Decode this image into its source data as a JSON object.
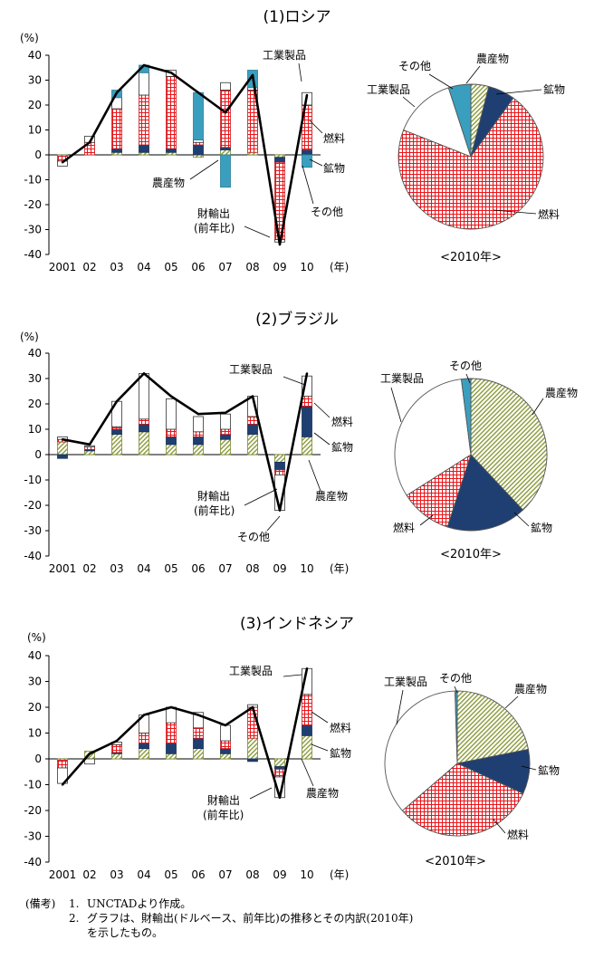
{
  "units": {
    "percent": "(%)",
    "year": "(年)"
  },
  "legend_names": {
    "manufactured": "工業製品",
    "fuel": "燃料",
    "mineral": "鉱物",
    "other": "その他",
    "agri": "農産物",
    "total_line": "財輸出",
    "total_line_sub": "(前年比)",
    "pie_caption": "<2010年>"
  },
  "colors": {
    "agri": "#9aa84a",
    "mineral": "#1f3f72",
    "fuel": "#e8161b",
    "manufactured": "#ffffff",
    "other": "#3a9fbf",
    "line": "#000000"
  },
  "notes": {
    "label": "(備考)",
    "items": [
      {
        "num": "1.",
        "text": "UNCTADより作成。"
      },
      {
        "num": "2.",
        "text": "グラフは、財輸出(ドルベース、前年比)の推移とその内訳(2010年)"
      }
    ],
    "continuation": "を示したもの。"
  },
  "chart_data": [
    {
      "type": "bar",
      "title": "(1)ロシア",
      "categories": [
        "2001",
        "02",
        "03",
        "04",
        "05",
        "06",
        "07",
        "08",
        "09",
        "10"
      ],
      "ylim": [
        -40,
        40
      ],
      "yticks": [
        -40,
        -30,
        -20,
        -10,
        0,
        10,
        20,
        30,
        40
      ],
      "series": [
        {
          "name": "農産物",
          "values": [
            -0.5,
            0,
            1,
            1,
            1,
            -1,
            2,
            1,
            -1,
            0
          ]
        },
        {
          "name": "鉱物",
          "values": [
            0,
            0,
            1.5,
            3,
            1.5,
            4,
            1,
            0,
            -2,
            2
          ]
        },
        {
          "name": "燃料",
          "values": [
            -2,
            5,
            16,
            20,
            29,
            1,
            23,
            25,
            -31,
            18
          ]
        },
        {
          "name": "工業製品",
          "values": [
            -2,
            2.5,
            4.5,
            9,
            2.5,
            1,
            3,
            1,
            -1,
            5
          ]
        },
        {
          "name": "その他",
          "values": [
            0,
            0,
            3,
            3,
            0,
            19,
            -13,
            7,
            0,
            -5
          ]
        }
      ],
      "total_line": {
        "name": "財輸出(前年比)",
        "values": [
          -3,
          5,
          25,
          36,
          33,
          25,
          17,
          32,
          -36,
          24
        ]
      },
      "pie": {
        "caption": "<2010年>",
        "slices": [
          {
            "name": "農産物",
            "value": 4
          },
          {
            "name": "鉱物",
            "value": 6
          },
          {
            "name": "燃料",
            "value": 71
          },
          {
            "name": "工業製品",
            "value": 14
          },
          {
            "name": "その他",
            "value": 5
          }
        ]
      }
    },
    {
      "type": "bar",
      "title": "(2)ブラジル",
      "categories": [
        "2001",
        "02",
        "03",
        "04",
        "05",
        "06",
        "07",
        "08",
        "09",
        "10"
      ],
      "ylim": [
        -40,
        40
      ],
      "yticks": [
        -40,
        -30,
        -20,
        -10,
        0,
        10,
        20,
        30,
        40
      ],
      "series": [
        {
          "name": "農産物",
          "values": [
            5,
            1.5,
            8,
            9,
            4,
            4,
            6,
            8,
            -3,
            7
          ]
        },
        {
          "name": "鉱物",
          "values": [
            -1.5,
            0.5,
            2,
            3,
            3,
            3,
            2,
            4,
            -3,
            12
          ]
        },
        {
          "name": "燃料",
          "values": [
            1,
            1,
            1,
            2,
            3,
            2,
            2,
            3,
            -2,
            4
          ]
        },
        {
          "name": "工業製品",
          "values": [
            1,
            0.5,
            10,
            18,
            12,
            6,
            6,
            8,
            -14,
            8
          ]
        },
        {
          "name": "その他",
          "values": [
            0,
            0,
            0,
            0,
            0,
            0,
            0,
            0,
            0,
            0
          ]
        }
      ],
      "total_line": {
        "name": "財輸出(前年比)",
        "values": [
          6,
          4,
          21,
          32,
          23,
          16,
          16.5,
          23,
          -22,
          32
        ]
      },
      "pie": {
        "caption": "<2010年>",
        "slices": [
          {
            "name": "農産物",
            "value": 38
          },
          {
            "name": "鉱物",
            "value": 17
          },
          {
            "name": "燃料",
            "value": 11
          },
          {
            "name": "工業製品",
            "value": 32
          },
          {
            "name": "その他",
            "value": 2
          }
        ]
      }
    },
    {
      "type": "bar",
      "title": "(3)インドネシア",
      "categories": [
        "2001",
        "02",
        "03",
        "04",
        "05",
        "06",
        "07",
        "08",
        "09",
        "10"
      ],
      "ylim": [
        -40,
        40
      ],
      "yticks": [
        -40,
        -30,
        -20,
        -10,
        0,
        10,
        20,
        30,
        40
      ],
      "series": [
        {
          "name": "農産物",
          "values": [
            -0.5,
            3,
            2,
            4,
            2,
            4,
            2,
            8,
            -3,
            9
          ]
        },
        {
          "name": "鉱物",
          "values": [
            0,
            0,
            0.5,
            2,
            4,
            4,
            2,
            -1,
            -1,
            4
          ]
        },
        {
          "name": "燃料",
          "values": [
            -3,
            0,
            3,
            4,
            8,
            4,
            3,
            12,
            -3,
            12
          ]
        },
        {
          "name": "工業製品",
          "values": [
            -6,
            -2,
            1,
            7,
            6,
            6,
            6,
            1,
            -8,
            10
          ]
        },
        {
          "name": "その他",
          "values": [
            0,
            0,
            0,
            0,
            0,
            0,
            0,
            0,
            0,
            0
          ]
        }
      ],
      "total_line": {
        "name": "財輸出(前年比)",
        "values": [
          -10,
          2,
          7,
          17,
          20,
          17,
          13,
          20,
          -15,
          35
        ]
      },
      "pie": {
        "caption": "<2010年>",
        "slices": [
          {
            "name": "農産物",
            "value": 22
          },
          {
            "name": "鉱物",
            "value": 10
          },
          {
            "name": "燃料",
            "value": 32
          },
          {
            "name": "工業製品",
            "value": 36
          },
          {
            "name": "その他",
            "value": 0.5
          }
        ]
      }
    }
  ]
}
